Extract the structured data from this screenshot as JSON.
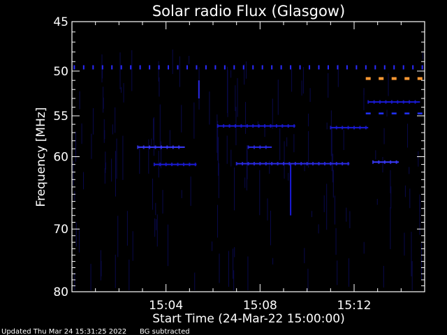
{
  "chart_data": {
    "type": "heatmap",
    "title": "Solar radio Flux (Glasgow)",
    "xlabel": "Start Time (24-Mar-22 15:00:00)",
    "ylabel": "Frequency [MHz]",
    "x_ticks": [
      "15:04",
      "15:08",
      "15:12"
    ],
    "x_tick_minutes": [
      4,
      8,
      12
    ],
    "xlim_minutes": [
      0,
      15
    ],
    "y_scale": "log",
    "ylim": [
      45,
      80
    ],
    "y_ticks": [
      45,
      50,
      55,
      60,
      70,
      80
    ],
    "grid": false,
    "colors": {
      "background": "#000000",
      "dim": "#1a1ad8",
      "bright": "#3a3aff",
      "hot": "#ff9933"
    },
    "features": [
      {
        "kind": "dashes",
        "freq": 49.6,
        "t_start": 0.1,
        "t_end": 15.0,
        "period": 0.4,
        "color": "#2a2aff"
      },
      {
        "kind": "dashes",
        "freq": 50.8,
        "t_start": 12.6,
        "t_end": 14.8,
        "period": 0.55,
        "color": "#ff9933"
      },
      {
        "kind": "dashes",
        "freq": 54.7,
        "t_start": 12.6,
        "t_end": 14.8,
        "period": 0.55,
        "color": "#2233ff"
      },
      {
        "kind": "line",
        "freq": 53.4,
        "t_start": 12.6,
        "t_end": 14.8,
        "color": "#1a1ad8"
      },
      {
        "kind": "line",
        "freq": 58.8,
        "t_start": 2.8,
        "t_end": 4.8,
        "color": "#3a3aff"
      },
      {
        "kind": "line",
        "freq": 58.8,
        "t_start": 7.5,
        "t_end": 8.5,
        "color": "#2a2ae8"
      },
      {
        "kind": "line",
        "freq": 61.0,
        "t_start": 3.5,
        "t_end": 5.3,
        "color": "#1a1ad8"
      },
      {
        "kind": "line",
        "freq": 60.9,
        "t_start": 7.0,
        "t_end": 11.8,
        "color": "#2a2ae8"
      },
      {
        "kind": "line",
        "freq": 60.7,
        "t_start": 12.8,
        "t_end": 13.9,
        "color": "#3a3aff"
      },
      {
        "kind": "line",
        "freq": 56.2,
        "t_start": 6.2,
        "t_end": 9.5,
        "color": "#1a1ad8"
      },
      {
        "kind": "line",
        "freq": 56.4,
        "t_start": 11.0,
        "t_end": 12.6,
        "color": "#1a1ad8"
      },
      {
        "kind": "vline",
        "t": 5.4,
        "f_start": 51.0,
        "f_end": 53.0,
        "color": "#2a2ae8"
      },
      {
        "kind": "vline",
        "t": 9.3,
        "f_start": 61.0,
        "f_end": 68.0,
        "color": "#1a1ad8"
      }
    ]
  },
  "footer": {
    "updated": "Updated Thu Mar 24 15:31:25 2022",
    "note": "BG subtracted"
  }
}
